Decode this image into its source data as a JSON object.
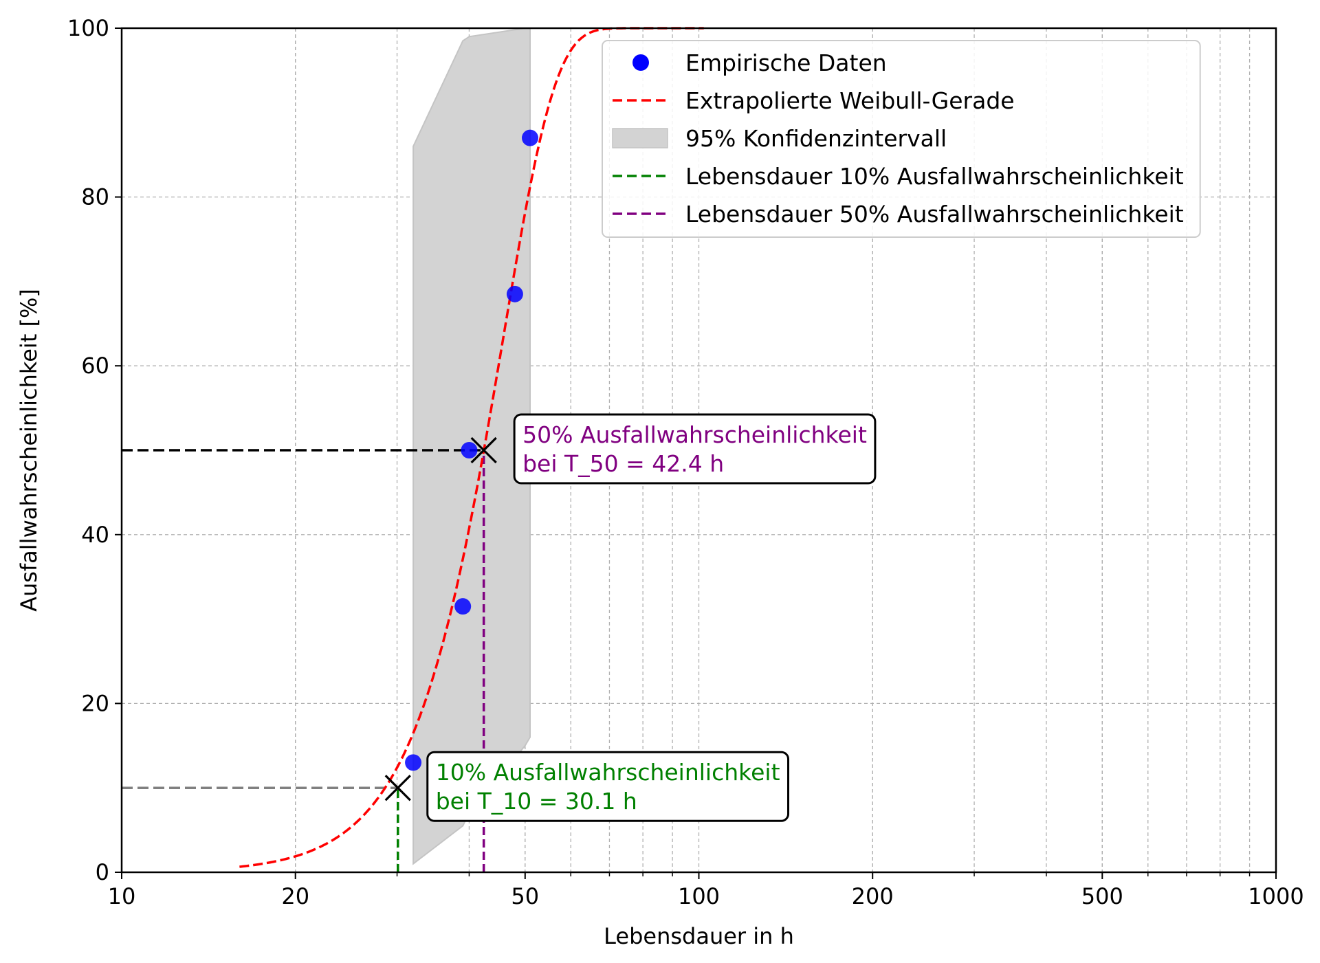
{
  "chart_data": {
    "type": "scatter",
    "xlabel": "Lebensdauer in h",
    "ylabel": "Ausfallwahrscheinlichkeit [%]",
    "xscale": "log",
    "xlim": [
      10,
      1000
    ],
    "ylim": [
      0,
      100
    ],
    "xticks": [
      10,
      20,
      50,
      100,
      200,
      500,
      1000
    ],
    "xtick_labels": [
      "10",
      "20",
      "50",
      "100",
      "200",
      "500",
      "1000"
    ],
    "yticks": [
      0,
      20,
      40,
      60,
      80,
      100
    ],
    "ytick_labels": [
      "0",
      "20",
      "40",
      "60",
      "80",
      "100"
    ],
    "grid": true,
    "legend_position": "top-right",
    "weibull": {
      "shape": 4.78,
      "scale": 45.8,
      "x_range": [
        16,
        102
      ]
    },
    "series": [
      {
        "name": "Empirische Daten",
        "kind": "scatter",
        "color": "#0000ff",
        "points": [
          {
            "x": 32.0,
            "y": 13.0
          },
          {
            "x": 39.0,
            "y": 31.5
          },
          {
            "x": 40.0,
            "y": 50.0
          },
          {
            "x": 48.0,
            "y": 68.5
          },
          {
            "x": 51.0,
            "y": 87.0
          }
        ]
      },
      {
        "name": "Extrapolierte Weibull-Gerade",
        "kind": "line",
        "color": "#ff0000",
        "dash": "dashed"
      },
      {
        "name": "95% Konfidenzintervall",
        "kind": "band",
        "color": "#d3d3d3",
        "lower": [
          [
            32.0,
            1.0
          ],
          [
            39.0,
            5.5
          ],
          [
            40.0,
            7.0
          ],
          [
            50.0,
            15.0
          ],
          [
            51.0,
            16.0
          ]
        ],
        "upper": [
          [
            32.0,
            86.0
          ],
          [
            39.0,
            98.5
          ],
          [
            40.0,
            99.0
          ],
          [
            50.0,
            100.0
          ],
          [
            51.0,
            100.0
          ]
        ]
      },
      {
        "name": "Lebensdauer 10% Ausfallwahrscheinlichkeit",
        "kind": "vline",
        "x": 30.1,
        "ymax": 10,
        "color": "#008000",
        "dash": "dashed"
      },
      {
        "name": "Lebensdauer 50% Ausfallwahrscheinlichkeit",
        "kind": "vline",
        "x": 42.4,
        "ymax": 50,
        "color": "#800080",
        "dash": "dashed"
      }
    ],
    "hlines": [
      {
        "y": 10,
        "x_to": 30.1,
        "color": "#808080"
      },
      {
        "y": 50,
        "x_to": 42.4,
        "color": "#000000"
      }
    ],
    "markers": [
      {
        "x": 30.1,
        "y": 10
      },
      {
        "x": 42.4,
        "y": 50
      }
    ],
    "annotations": [
      {
        "lines": [
          "10% Ausfallwahrscheinlichkeit",
          "bei T_10 = 30.1 h"
        ],
        "color": "#008000",
        "x": 35.0,
        "y": 10
      },
      {
        "lines": [
          "50% Ausfallwahrscheinlichkeit",
          "bei T_50 = 42.4 h"
        ],
        "color": "#800080",
        "x": 49.5,
        "y": 50
      }
    ]
  }
}
